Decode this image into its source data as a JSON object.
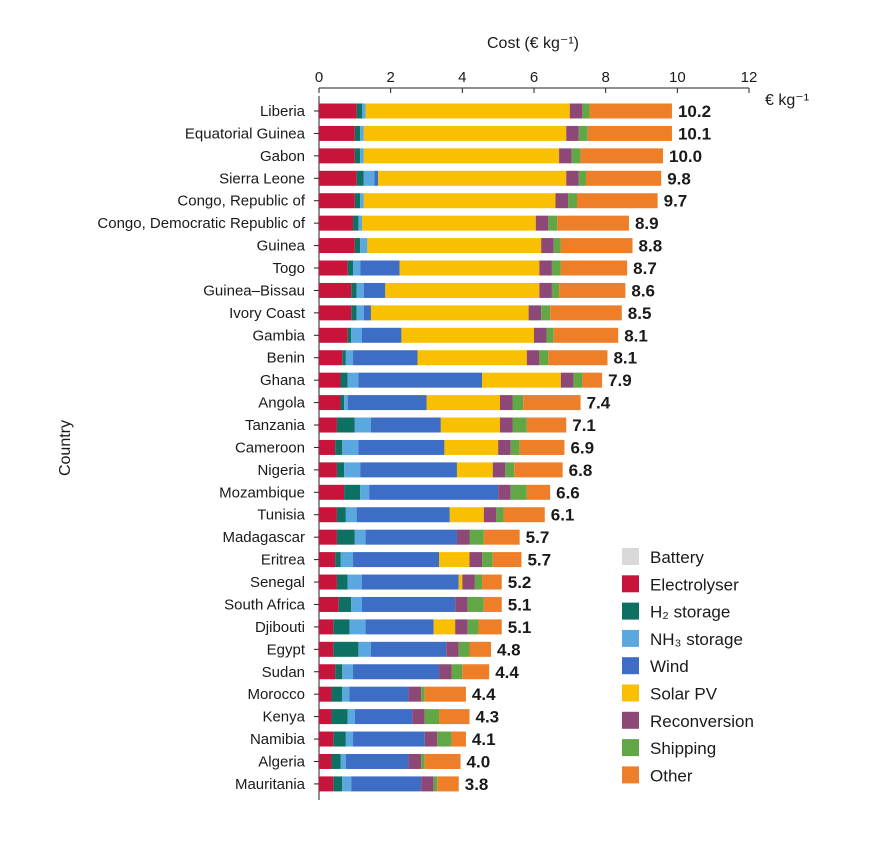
{
  "chart_data": {
    "type": "bar",
    "orientation": "horizontal",
    "stacked": true,
    "xlabel": "Cost (€ kg⁻¹)",
    "ylabel": "Country",
    "unit_label": "€ kg⁻¹",
    "xlim": [
      0,
      12
    ],
    "xticks": [
      "0",
      "2",
      "4",
      "6",
      "8",
      "10",
      "12"
    ],
    "grid": false,
    "legend_position": "bottom-right",
    "categories": [
      "Liberia",
      "Equatorial Guinea",
      "Gabon",
      "Sierra Leone",
      "Congo, Republic of",
      "Congo, Democratic Republic of",
      "Guinea",
      "Togo",
      "Guinea–Bissau",
      "Ivory Coast",
      "Gambia",
      "Benin",
      "Ghana",
      "Angola",
      "Tanzania",
      "Cameroon",
      "Nigeria",
      "Mozambique",
      "Tunisia",
      "Madagascar",
      "Eritrea",
      "Senegal",
      "South Africa",
      "Djibouti",
      "Egypt",
      "Sudan",
      "Morocco",
      "Kenya",
      "Namibia",
      "Algeria",
      "Mauritania"
    ],
    "totals": [
      "10.2",
      "10.1",
      "10.0",
      "9.8",
      "9.7",
      "8.9",
      "8.8",
      "8.7",
      "8.6",
      "8.5",
      "8.1",
      "8.1",
      "7.9",
      "7.4",
      "7.1",
      "6.9",
      "6.8",
      "6.6",
      "6.1",
      "5.7",
      "5.7",
      "5.2",
      "5.1",
      "5.1",
      "4.8",
      "4.4",
      "4.4",
      "4.3",
      "4.1",
      "4.0",
      "3.8"
    ],
    "series": [
      {
        "name": "Battery",
        "color": "#d9d9d9",
        "values": [
          0,
          0,
          0,
          0,
          0,
          0,
          0,
          0,
          0,
          0,
          0,
          0,
          0,
          0,
          0,
          0,
          0,
          0,
          0,
          0,
          0,
          0,
          0,
          0,
          0,
          0,
          0,
          0,
          0,
          0,
          0
        ]
      },
      {
        "name": "Electrolyser",
        "color": "#c8133b",
        "values": [
          1.05,
          1.0,
          1.0,
          1.05,
          1.0,
          0.95,
          1.0,
          0.8,
          0.9,
          0.9,
          0.8,
          0.65,
          0.6,
          0.6,
          0.5,
          0.45,
          0.5,
          0.7,
          0.5,
          0.5,
          0.45,
          0.5,
          0.55,
          0.4,
          0.4,
          0.45,
          0.35,
          0.35,
          0.4,
          0.35,
          0.4
        ]
      },
      {
        "name": "H₂ storage",
        "color": "#0e7063",
        "values": [
          0.15,
          0.15,
          0.15,
          0.2,
          0.15,
          0.15,
          0.15,
          0.15,
          0.15,
          0.15,
          0.1,
          0.1,
          0.2,
          0.1,
          0.5,
          0.2,
          0.2,
          0.45,
          0.25,
          0.5,
          0.15,
          0.3,
          0.35,
          0.45,
          0.7,
          0.2,
          0.3,
          0.45,
          0.35,
          0.25,
          0.25
        ]
      },
      {
        "name": "NH₃ storage",
        "color": "#5aa8df",
        "values": [
          0.1,
          0.1,
          0.1,
          0.3,
          0.1,
          0.1,
          0.2,
          0.2,
          0.2,
          0.2,
          0.3,
          0.2,
          0.3,
          0.1,
          0.45,
          0.45,
          0.45,
          0.25,
          0.3,
          0.3,
          0.35,
          0.4,
          0.3,
          0.45,
          0.35,
          0.3,
          0.2,
          0.2,
          0.2,
          0.15,
          0.25
        ]
      },
      {
        "name": "Wind",
        "color": "#3d6dc4",
        "values": [
          0,
          0,
          0,
          0.1,
          0,
          0,
          0,
          1.1,
          0.6,
          0.2,
          1.1,
          1.8,
          3.45,
          2.2,
          1.95,
          2.4,
          2.7,
          3.6,
          2.6,
          2.55,
          2.4,
          2.7,
          2.6,
          1.9,
          2.1,
          2.4,
          1.65,
          1.6,
          2.0,
          1.75,
          1.95
        ]
      },
      {
        "name": "Solar PV",
        "color": "#f8c000",
        "values": [
          5.7,
          5.65,
          5.45,
          5.25,
          5.35,
          4.85,
          4.85,
          3.9,
          4.3,
          4.4,
          3.7,
          3.05,
          2.2,
          2.05,
          1.65,
          1.5,
          1.0,
          0,
          0.95,
          0,
          0.85,
          0.1,
          0,
          0.6,
          0,
          0,
          0,
          0,
          0,
          0,
          0
        ]
      },
      {
        "name": "Reconversion",
        "color": "#8d4877",
        "values": [
          0.35,
          0.35,
          0.35,
          0.35,
          0.35,
          0.35,
          0.35,
          0.35,
          0.35,
          0.35,
          0.35,
          0.35,
          0.35,
          0.35,
          0.35,
          0.35,
          0.35,
          0.35,
          0.35,
          0.35,
          0.35,
          0.35,
          0.35,
          0.35,
          0.35,
          0.35,
          0.35,
          0.35,
          0.35,
          0.35,
          0.35
        ]
      },
      {
        "name": "Shipping",
        "color": "#62a745",
        "values": [
          0.2,
          0.25,
          0.25,
          0.2,
          0.25,
          0.25,
          0.2,
          0.25,
          0.2,
          0.25,
          0.2,
          0.25,
          0.25,
          0.3,
          0.4,
          0.25,
          0.25,
          0.45,
          0.2,
          0.4,
          0.3,
          0.2,
          0.45,
          0.3,
          0.3,
          0.3,
          0.1,
          0.4,
          0.4,
          0.1,
          0.1
        ]
      },
      {
        "name": "Other",
        "color": "#ef7e29",
        "values": [
          2.3,
          2.35,
          2.3,
          2.1,
          2.25,
          2.0,
          2.0,
          1.85,
          1.85,
          2.0,
          1.8,
          1.65,
          0.55,
          1.6,
          1.1,
          1.25,
          1.35,
          0.65,
          1.15,
          1.0,
          0.8,
          0.55,
          0.5,
          0.65,
          0.6,
          0.75,
          1.15,
          0.85,
          0.4,
          1.0,
          0.6
        ]
      }
    ]
  }
}
